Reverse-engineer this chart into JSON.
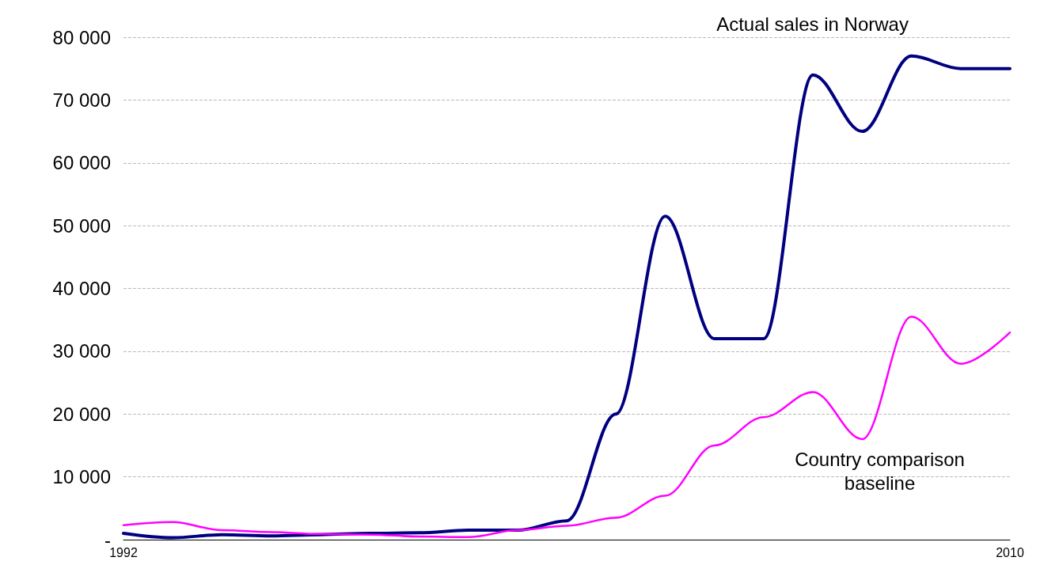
{
  "chart_data": {
    "type": "line",
    "x": [
      1992,
      1993,
      1994,
      1995,
      1996,
      1997,
      1998,
      1999,
      2000,
      2001,
      2002,
      2003,
      2004,
      2005,
      2006,
      2007,
      2008,
      2009,
      2010
    ],
    "series": [
      {
        "name": "Actual sales in Norway",
        "color": "#000080",
        "values": [
          1000,
          300,
          800,
          600,
          800,
          1000,
          1100,
          1500,
          1500,
          3000,
          20000,
          51500,
          32000,
          32000,
          74000,
          65000,
          77000,
          75000,
          75000
        ]
      },
      {
        "name": "Country comparison baseline",
        "color": "#ff00ff",
        "values": [
          2300,
          2800,
          1500,
          1200,
          900,
          800,
          500,
          400,
          1500,
          2200,
          3500,
          7000,
          15000,
          19500,
          23500,
          16000,
          35500,
          28000,
          33000
        ]
      }
    ],
    "xlim": [
      1992,
      2010
    ],
    "xticks": [
      1992,
      2010
    ],
    "ylim": [
      0,
      80000
    ],
    "yticks": [
      {
        "value": 0,
        "label": "-"
      },
      {
        "value": 10000,
        "label": "10 000"
      },
      {
        "value": 20000,
        "label": "20 000"
      },
      {
        "value": 30000,
        "label": "30 000"
      },
      {
        "value": 40000,
        "label": "40 000"
      },
      {
        "value": 50000,
        "label": "50 000"
      },
      {
        "value": 60000,
        "label": "60 000"
      },
      {
        "value": 70000,
        "label": "70 000"
      },
      {
        "value": 80000,
        "label": "80 000"
      }
    ],
    "grid": "y",
    "legend": false,
    "marker": "none",
    "line_style": "solid"
  }
}
